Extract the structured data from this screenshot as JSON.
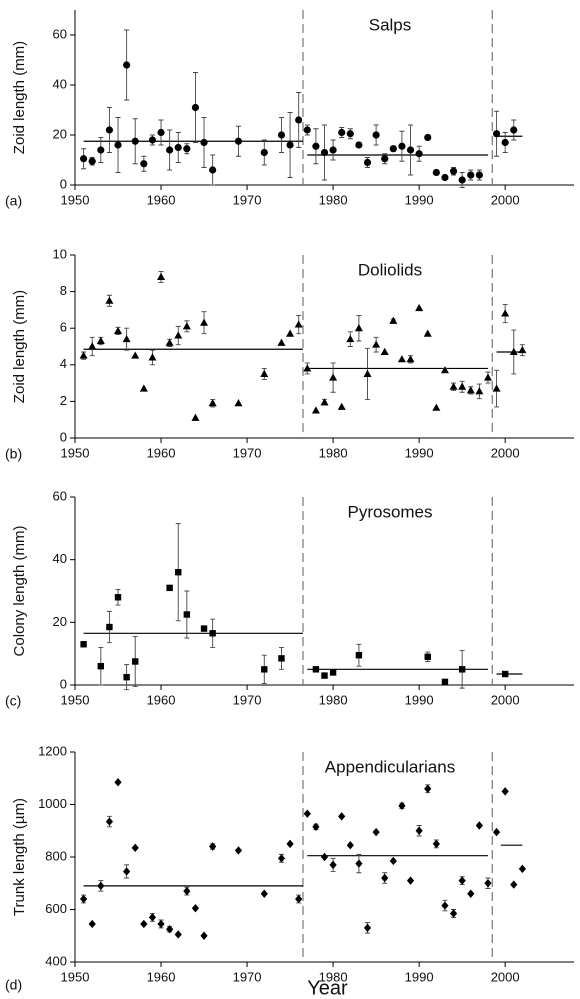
{
  "chart_data": [
    {
      "type": "scatter",
      "panel_label": "(a)",
      "title": "Salps",
      "y_label": "Zoid length (mm)",
      "marker": "circle",
      "color": "#000000",
      "x": [
        1951,
        1952,
        1953,
        1954,
        1955,
        1956,
        1957,
        1958,
        1959,
        1960,
        1961,
        1962,
        1963,
        1964,
        1965,
        1966,
        1969,
        1972,
        1974,
        1975,
        1976,
        1977,
        1978,
        1979,
        1980,
        1981,
        1982,
        1983,
        1984,
        1985,
        1986,
        1987,
        1988,
        1989,
        1990,
        1991,
        1992,
        1993,
        1994,
        1995,
        1996,
        1997,
        1999,
        2000,
        2001
      ],
      "values": [
        10.5,
        9.5,
        14,
        22,
        16,
        48,
        17.5,
        8.5,
        18,
        21,
        14,
        15,
        14.5,
        31,
        17,
        6,
        17.5,
        13,
        20,
        16,
        26,
        22,
        15.5,
        13,
        14,
        21,
        20.5,
        16,
        9,
        20,
        10.5,
        14.5,
        15.5,
        14,
        12.5,
        19,
        5,
        3,
        5.5,
        2,
        4,
        4,
        20.5,
        17,
        22
      ],
      "errors": [
        4,
        1.5,
        5,
        9,
        11,
        14,
        9,
        3,
        2,
        5,
        8,
        6,
        2,
        14,
        10,
        6,
        6,
        5,
        7,
        13,
        11,
        2,
        7,
        11,
        4,
        2,
        2,
        1,
        2,
        4,
        2,
        1,
        6,
        10,
        3,
        1,
        1,
        0.5,
        1.5,
        3,
        2,
        2,
        9,
        4,
        4
      ],
      "mean_lines": [
        {
          "from": 1951,
          "to": 1976.5,
          "value": 17.5
        },
        {
          "from": 1977,
          "to": 1998,
          "value": 12
        },
        {
          "from": 1999,
          "to": 2002,
          "value": 19.5
        }
      ],
      "breaks": [
        1976.5,
        1998.5
      ],
      "xlim": [
        1950,
        2008
      ],
      "xticks": [
        1950,
        1960,
        1970,
        1980,
        1990,
        2000
      ],
      "ylim": [
        0,
        70
      ],
      "yticks": [
        0,
        20,
        40,
        60
      ]
    },
    {
      "type": "scatter",
      "panel_label": "(b)",
      "title": "Doliolids",
      "y_label": "Zoid length  (mm)",
      "marker": "triangle",
      "color": "#000000",
      "x": [
        1951,
        1952,
        1953,
        1954,
        1955,
        1956,
        1957,
        1958,
        1959,
        1960,
        1961,
        1962,
        1963,
        1964,
        1965,
        1966,
        1969,
        1972,
        1974,
        1975,
        1976,
        1977,
        1978,
        1979,
        1980,
        1981,
        1982,
        1983,
        1984,
        1985,
        1986,
        1987,
        1988,
        1989,
        1990,
        1991,
        1992,
        1993,
        1994,
        1995,
        1996,
        1997,
        1998,
        1999,
        2000,
        2001,
        2002
      ],
      "values": [
        4.5,
        5.0,
        5.3,
        7.5,
        5.85,
        5.4,
        4.5,
        2.7,
        4.4,
        8.8,
        5.2,
        5.6,
        6.1,
        1.1,
        6.3,
        1.9,
        1.9,
        3.5,
        5.2,
        5.7,
        6.2,
        3.8,
        1.5,
        1.95,
        3.3,
        1.7,
        5.4,
        6.0,
        3.5,
        5.1,
        4.7,
        6.4,
        4.3,
        4.3,
        7.1,
        5.7,
        1.65,
        3.7,
        2.8,
        2.8,
        2.6,
        2.55,
        3.3,
        2.7,
        6.8,
        4.7,
        4.8
      ],
      "errors": [
        0.2,
        0.5,
        0.2,
        0.3,
        0.2,
        0.6,
        null,
        null,
        0.4,
        0.3,
        0.2,
        0.5,
        0.3,
        null,
        0.6,
        0.2,
        null,
        0.3,
        null,
        null,
        0.5,
        0.3,
        null,
        0.15,
        0.8,
        null,
        0.4,
        0.7,
        1.4,
        0.4,
        null,
        0.1,
        null,
        0.2,
        null,
        null,
        null,
        0.1,
        0.2,
        0.3,
        0.2,
        0.4,
        0.3,
        1,
        0.5,
        1.2,
        0.3
      ],
      "mean_lines": [
        {
          "from": 1951,
          "to": 1976.5,
          "value": 4.85
        },
        {
          "from": 1977,
          "to": 1998,
          "value": 3.8
        },
        {
          "from": 1999,
          "to": 2002,
          "value": 4.7
        }
      ],
      "breaks": [
        1976.5,
        1998.5
      ],
      "xlim": [
        1950,
        2008
      ],
      "xticks": [
        1950,
        1960,
        1970,
        1980,
        1990,
        2000
      ],
      "ylim": [
        0,
        10
      ],
      "yticks": [
        0,
        2,
        4,
        6,
        8,
        10
      ]
    },
    {
      "type": "scatter",
      "panel_label": "(c)",
      "title": "Pyrosomes",
      "y_label": "Colony length (mm)",
      "marker": "square",
      "color": "#000000",
      "x": [
        1951,
        1953,
        1954,
        1955,
        1956,
        1957,
        1961,
        1962,
        1963,
        1965,
        1966,
        1972,
        1974,
        1978,
        1979,
        1980,
        1983,
        1991,
        1993,
        1995,
        2000
      ],
      "values": [
        13,
        6,
        18.5,
        28,
        2.5,
        7.5,
        31,
        36,
        22.5,
        18,
        16.5,
        5,
        8.5,
        5,
        3,
        4,
        9.5,
        9,
        1,
        5,
        3.5
      ],
      "errors": [
        null,
        6,
        5,
        2.5,
        4,
        8,
        null,
        15.5,
        7.5,
        null,
        4.5,
        4.5,
        3.5,
        null,
        null,
        null,
        3.5,
        1.5,
        null,
        6,
        null
      ],
      "mean_lines": [
        {
          "from": 1951,
          "to": 1976.5,
          "value": 16.5
        },
        {
          "from": 1977,
          "to": 1998,
          "value": 5
        },
        {
          "from": 1999,
          "to": 2002,
          "value": 3.5
        }
      ],
      "breaks": [
        1976.5,
        1998.5
      ],
      "xlim": [
        1950,
        2008
      ],
      "xticks": [
        1950,
        1960,
        1970,
        1980,
        1990,
        2000
      ],
      "ylim": [
        0,
        60
      ],
      "yticks": [
        0,
        20,
        40,
        60
      ]
    },
    {
      "type": "scatter",
      "panel_label": "(d)",
      "title": "Appendicularians",
      "y_label": "Trunk length (µm)",
      "x_label": "Year",
      "marker": "diamond",
      "color": "#000000",
      "x": [
        1951,
        1952,
        1953,
        1954,
        1955,
        1956,
        1957,
        1958,
        1959,
        1960,
        1961,
        1962,
        1963,
        1964,
        1965,
        1966,
        1969,
        1972,
        1974,
        1975,
        1976,
        1977,
        1978,
        1979,
        1980,
        1981,
        1982,
        1983,
        1984,
        1985,
        1986,
        1987,
        1988,
        1989,
        1990,
        1991,
        1992,
        1993,
        1994,
        1995,
        1996,
        1997,
        1998,
        1999,
        2000,
        2001,
        2002
      ],
      "values": [
        640,
        545,
        690,
        935,
        1085,
        745,
        835,
        545,
        570,
        545,
        525,
        505,
        670,
        605,
        500,
        840,
        825,
        660,
        795,
        850,
        640,
        965,
        915,
        800,
        770,
        955,
        845,
        775,
        530,
        895,
        720,
        785,
        995,
        710,
        900,
        1060,
        850,
        615,
        585,
        710,
        660,
        920,
        700,
        895,
        1050,
        695,
        755
      ],
      "errors": [
        15,
        null,
        20,
        20,
        null,
        25,
        null,
        null,
        15,
        15,
        10,
        null,
        15,
        null,
        null,
        10,
        null,
        null,
        15,
        null,
        15,
        null,
        10,
        null,
        25,
        null,
        null,
        35,
        20,
        null,
        20,
        null,
        10,
        null,
        20,
        15,
        15,
        20,
        15,
        15,
        null,
        null,
        20,
        null,
        null,
        null,
        null
      ],
      "mean_lines": [
        {
          "from": 1951,
          "to": 1976.5,
          "value": 690
        },
        {
          "from": 1977,
          "to": 1998,
          "value": 805
        },
        {
          "from": 1999.5,
          "to": 2002,
          "value": 845
        }
      ],
      "breaks": [
        1976.5,
        1998.5
      ],
      "xlim": [
        1950,
        2008
      ],
      "xticks": [
        1950,
        1960,
        1970,
        1980,
        1990,
        2000
      ],
      "ylim": [
        400,
        1200
      ],
      "yticks": [
        400,
        600,
        800,
        1000,
        1200
      ]
    }
  ]
}
